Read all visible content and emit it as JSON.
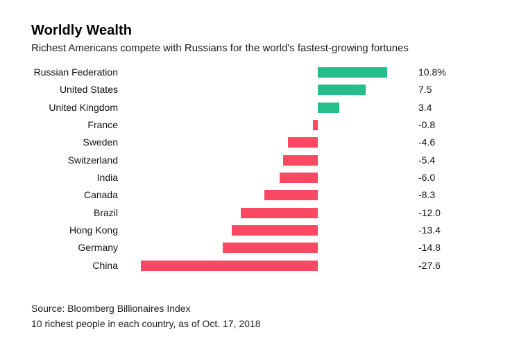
{
  "header": {
    "title": "Worldly Wealth",
    "subtitle": "Richest Americans compete with Russians for the world's fastest-growing fortunes"
  },
  "chart_data": {
    "type": "bar",
    "orientation": "horizontal",
    "title": "Worldly Wealth",
    "subtitle": "Richest Americans compete with Russians for the world's fastest-growing fortunes",
    "unit": "%",
    "categories": [
      "Russian Federation",
      "United States",
      "United Kingdom",
      "France",
      "Sweden",
      "Switzerland",
      "India",
      "Canada",
      "Brazil",
      "Hong Kong",
      "Germany",
      "China"
    ],
    "values": [
      10.8,
      7.5,
      3.4,
      -0.8,
      -4.6,
      -5.4,
      -6.0,
      -8.3,
      -12.0,
      -13.4,
      -14.8,
      -27.6
    ],
    "value_labels": [
      "10.8%",
      "7.5",
      "3.4",
      "-0.8",
      "-4.6",
      "-5.4",
      "-6.0",
      "-8.3",
      "-12.0",
      "-13.4",
      "-14.8",
      "-27.6"
    ],
    "xlim": [
      -27.6,
      10.8
    ],
    "grid": false,
    "legend": false,
    "positive_color": "#27be8c",
    "negative_color": "#f94963"
  },
  "footer": {
    "source": "Source: Bloomberg Billionaires Index",
    "note": "10 richest people in each country, as of Oct. 17, 2018"
  }
}
